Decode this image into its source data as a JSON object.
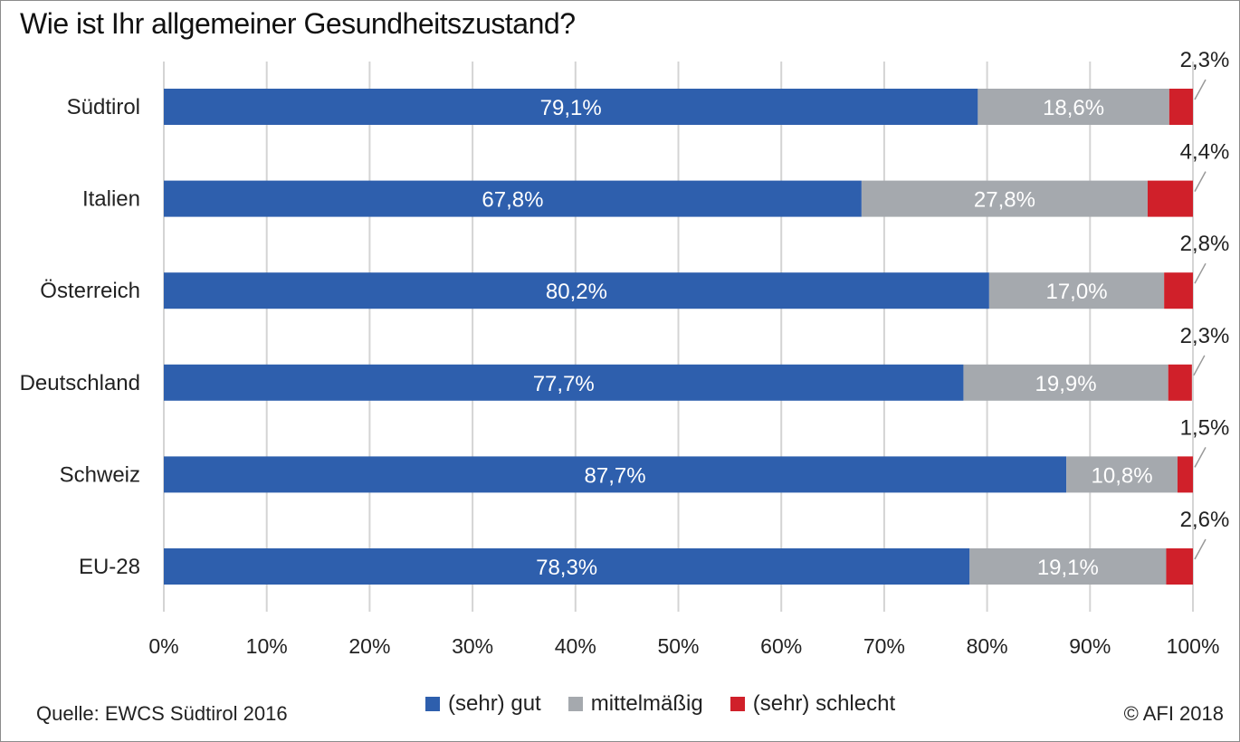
{
  "title": "Wie ist Ihr allgemeiner Gesundheitszustand?",
  "source": "Quelle: EWCS Südtirol 2016",
  "copyright": "© AFI 2018",
  "colors": {
    "gut": "#2e5fad",
    "mittel": "#a5a9ae",
    "schlecht": "#d0202a",
    "grid": "#d4d4d4"
  },
  "chart_data": {
    "type": "bar",
    "orientation": "horizontal",
    "stacked": true,
    "categories": [
      "Südtirol",
      "Italien",
      "Österreich",
      "Deutschland",
      "Schweiz",
      "EU-28"
    ],
    "series": [
      {
        "name": "(sehr) gut",
        "values": [
          79.1,
          67.8,
          80.2,
          77.7,
          87.7,
          78.3
        ],
        "labels": [
          "79,1%",
          "67,8%",
          "80,2%",
          "77,7%",
          "87,7%",
          "78,3%"
        ]
      },
      {
        "name": "mittelmäßig",
        "values": [
          18.6,
          27.8,
          17.0,
          19.9,
          10.8,
          19.1
        ],
        "labels": [
          "18,6%",
          "27,8%",
          "17,0%",
          "19,9%",
          "10,8%",
          "19,1%"
        ]
      },
      {
        "name": "(sehr) schlecht",
        "values": [
          2.3,
          4.4,
          2.8,
          2.3,
          1.5,
          2.6
        ],
        "labels": [
          "2,3%",
          "4,4%",
          "2,8%",
          "2,3%",
          "1,5%",
          "2,6%"
        ]
      }
    ],
    "x_ticks": [
      "0%",
      "10%",
      "20%",
      "30%",
      "40%",
      "50%",
      "60%",
      "70%",
      "80%",
      "90%",
      "100%"
    ],
    "xlim": [
      0,
      100
    ],
    "grid": true,
    "legend_position": "bottom"
  }
}
